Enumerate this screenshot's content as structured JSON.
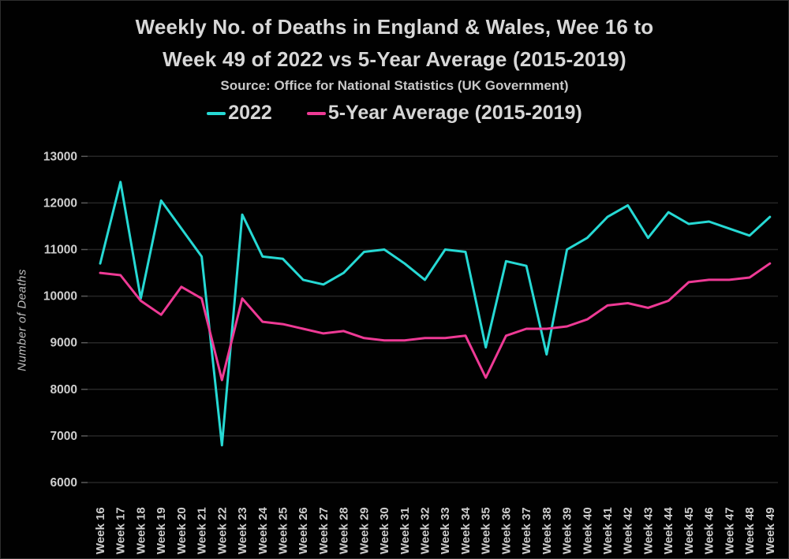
{
  "header": {
    "title_line1": "Weekly No. of Deaths in England & Wales, Wee 16 to",
    "title_line2": "Week 49 of 2022 vs 5-Year Average (2015-2019)",
    "subtitle": "Source: Office for National Statistics (UK Government)"
  },
  "colors": {
    "background": "#000000",
    "text": "#d8d8d8",
    "gridline": "#262626",
    "tick_mark": "#5a5a5a",
    "series_2022": "#26d9d4",
    "series_average": "#ee3a95"
  },
  "chart_data": {
    "type": "line",
    "title": "Weekly No. of Deaths in England & Wales, Wee 16 to Week 49 of 2022 vs 5-Year Average (2015-2019)",
    "subtitle": "Source: Office for National Statistics (UK Government)",
    "xlabel": "",
    "ylabel": "Number of Deaths",
    "ylim": [
      6000,
      13000
    ],
    "yticks": [
      13000,
      12000,
      11000,
      10000,
      9000,
      8000,
      7000,
      6000
    ],
    "grid": "horizontal",
    "legend_position": "top",
    "categories": [
      "Week 16",
      "Week 17",
      "Week 18",
      "Week 19",
      "Week 20",
      "Week 21",
      "Week 22",
      "Week 23",
      "Week 24",
      "Week 25",
      "Week 26",
      "Week 27",
      "Week 28",
      "Week 29",
      "Week 30",
      "Week 31",
      "Week 32",
      "Week 33",
      "Week 34",
      "Week 35",
      "Week 36",
      "Week 37",
      "Week 38",
      "Week 39",
      "Week 40",
      "Week 41",
      "Week 42",
      "Week 43",
      "Week 44",
      "Week 45",
      "Week 46",
      "Week 47",
      "Week 48",
      "Week 49"
    ],
    "series": [
      {
        "name": "2022",
        "color": "#26d9d4",
        "values": [
          10700,
          12450,
          9950,
          12050,
          11450,
          10850,
          6800,
          11750,
          10850,
          10800,
          10350,
          10250,
          10500,
          10950,
          11000,
          10700,
          10350,
          11000,
          10950,
          8900,
          10750,
          10650,
          8750,
          11000,
          11250,
          11700,
          11950,
          11250,
          11800,
          11550,
          11600,
          11450,
          11300,
          11700
        ]
      },
      {
        "name": "5-Year Average (2015-2019)",
        "color": "#ee3a95",
        "values": [
          10500,
          10450,
          9900,
          9600,
          10200,
          9950,
          8200,
          9950,
          9450,
          9400,
          9300,
          9200,
          9250,
          9100,
          9050,
          9050,
          9100,
          9100,
          9150,
          8250,
          9150,
          9300,
          9300,
          9350,
          9500,
          9800,
          9850,
          9750,
          9900,
          10300,
          10350,
          10350,
          10400,
          10700
        ]
      }
    ]
  }
}
